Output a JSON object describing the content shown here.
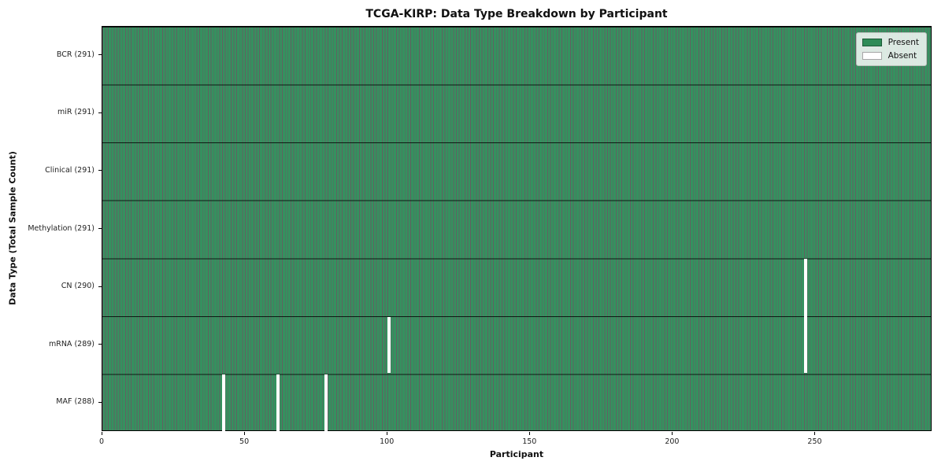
{
  "figure": {
    "title": "TCGA-KIRP: Data Type Breakdown by Participant",
    "xlabel": "Participant",
    "ylabel": "Data Type (Total Sample Count)"
  },
  "colors": {
    "present_fill": "#35915f",
    "present_legend": "#2e8b57",
    "absent": "#ffffff",
    "cell_edge": "rgba(0,0,0,0.62)",
    "row_divider": "rgba(0,0,0,0.8)",
    "axis": "#000000"
  },
  "chart_data": {
    "type": "heatmap",
    "title": "TCGA-KIRP: Data Type Breakdown by Participant",
    "xlabel": "Participant",
    "ylabel": "Data Type (Total Sample Count)",
    "total_participants": 291,
    "x_ticks": [
      0,
      50,
      100,
      150,
      200,
      250
    ],
    "x_range": [
      0,
      291
    ],
    "grid": false,
    "legend_position": "upper right",
    "rows": [
      {
        "label": "BCR (291)",
        "data_type": "BCR",
        "present_count": 291,
        "absent_participants": []
      },
      {
        "label": "miR (291)",
        "data_type": "miR",
        "present_count": 291,
        "absent_participants": []
      },
      {
        "label": "Clinical (291)",
        "data_type": "Clinical",
        "present_count": 291,
        "absent_participants": []
      },
      {
        "label": "Methylation (291)",
        "data_type": "Methylation",
        "present_count": 291,
        "absent_participants": []
      },
      {
        "label": "CN (290)",
        "data_type": "CN",
        "present_count": 290,
        "absent_participants": [
          246
        ]
      },
      {
        "label": "mRNA (289)",
        "data_type": "mRNA",
        "present_count": 289,
        "absent_participants": [
          100,
          246
        ]
      },
      {
        "label": "MAF (288)",
        "data_type": "MAF",
        "present_count": 288,
        "absent_participants": [
          42,
          61,
          78
        ]
      }
    ],
    "legend": [
      {
        "label": "Present",
        "color": "#2e8b57"
      },
      {
        "label": "Absent",
        "color": "#ffffff"
      }
    ]
  }
}
